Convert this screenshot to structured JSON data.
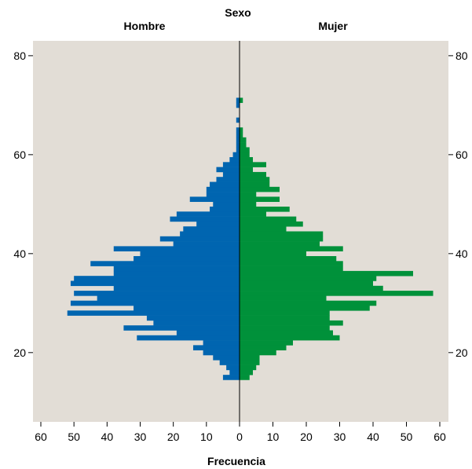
{
  "chart_data": {
    "type": "bar",
    "orientation": "horizontal-pyramid",
    "title": "Sexo",
    "xlabel": "Frecuencia",
    "ylabel": "",
    "left_panel": "Hombre",
    "right_panel": "Mujer",
    "xlim": [
      0,
      60
    ],
    "ylim": [
      6,
      83
    ],
    "grid": false,
    "background": "#e2ddd6",
    "x_ticks": [
      "60",
      "50",
      "40",
      "30",
      "20",
      "10",
      "0",
      "10",
      "20",
      "30",
      "40",
      "50",
      "60"
    ],
    "y_ticks": [
      "20",
      "40",
      "60",
      "80"
    ],
    "ages": [
      15,
      16,
      17,
      18,
      19,
      20,
      21,
      22,
      23,
      24,
      25,
      26,
      27,
      28,
      29,
      30,
      31,
      32,
      33,
      34,
      35,
      36,
      37,
      38,
      39,
      40,
      41,
      42,
      43,
      44,
      45,
      46,
      47,
      48,
      49,
      50,
      51,
      52,
      53,
      54,
      55,
      56,
      57,
      58,
      59,
      60,
      61,
      62,
      63,
      64,
      65,
      66,
      67,
      68,
      69,
      70,
      71
    ],
    "series": [
      {
        "name": "Hombre",
        "color": "#0065b0",
        "values": [
          5,
          3,
          4,
          6,
          8,
          11,
          14,
          11,
          31,
          19,
          35,
          26,
          28,
          52,
          32,
          51,
          43,
          50,
          38,
          51,
          50,
          38,
          38,
          45,
          32,
          30,
          38,
          20,
          24,
          18,
          17,
          13,
          21,
          19,
          9,
          8,
          15,
          10,
          10,
          9,
          7,
          5,
          7,
          5,
          3,
          2,
          1,
          1,
          1,
          1,
          1,
          0,
          1,
          0,
          0,
          1,
          1
        ]
      },
      {
        "name": "Mujer",
        "color": "#00913a",
        "values": [
          3,
          4,
          5,
          6,
          6,
          11,
          14,
          16,
          30,
          28,
          27,
          31,
          27,
          27,
          39,
          41,
          26,
          58,
          43,
          40,
          41,
          52,
          31,
          31,
          29,
          20,
          31,
          24,
          25,
          25,
          14,
          19,
          17,
          8,
          15,
          5,
          12,
          5,
          12,
          9,
          9,
          8,
          4,
          8,
          4,
          3,
          3,
          2,
          2,
          1,
          1,
          0,
          0,
          0,
          0,
          0,
          1
        ]
      }
    ]
  }
}
